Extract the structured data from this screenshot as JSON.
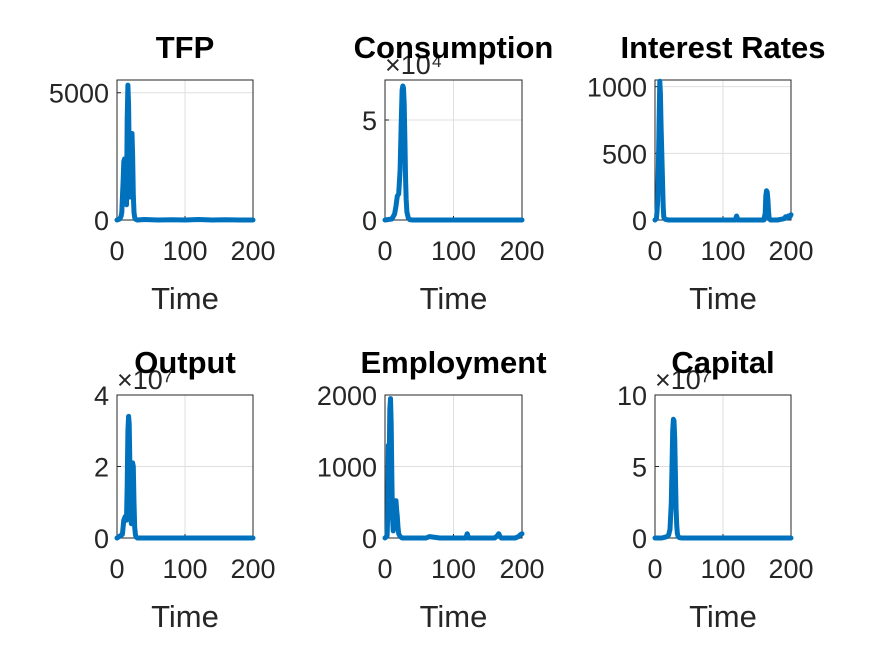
{
  "chart_data": [
    {
      "type": "line",
      "title": "TFP",
      "xlabel": "Time",
      "ylabel": "",
      "xlim": [
        0,
        200
      ],
      "ylim": [
        0,
        5500
      ],
      "xticks": [
        0,
        100,
        200
      ],
      "yticks": [
        0,
        5000
      ],
      "ytick_labels": [
        "0",
        "5000"
      ],
      "grid": true,
      "line_color": "#0072BD",
      "series": [
        {
          "x": [
            0,
            4,
            6,
            7,
            8,
            9,
            10,
            11,
            12,
            13,
            14,
            15,
            16,
            17,
            18,
            19,
            20,
            21,
            22,
            23,
            24,
            25,
            26,
            27,
            30,
            40,
            60,
            80,
            100,
            120,
            140,
            160,
            180,
            200
          ],
          "y": [
            0,
            40,
            150,
            300,
            900,
            1500,
            2300,
            2400,
            1800,
            1000,
            600,
            4000,
            5300,
            4500,
            2600,
            900,
            1600,
            3000,
            3400,
            2600,
            1000,
            300,
            100,
            30,
            0,
            20,
            0,
            10,
            0,
            20,
            0,
            10,
            0,
            0
          ]
        }
      ]
    },
    {
      "type": "line",
      "title": "Consumption",
      "xlabel": "Time",
      "ylabel": "",
      "exponent_label": "×10⁴",
      "xlim": [
        0,
        200
      ],
      "ylim": [
        0,
        7
      ],
      "xticks": [
        0,
        100,
        200
      ],
      "yticks": [
        0,
        5
      ],
      "ytick_labels": [
        "0",
        "5"
      ],
      "grid": true,
      "line_color": "#0072BD",
      "series": [
        {
          "x": [
            0,
            10,
            14,
            16,
            18,
            20,
            22,
            24,
            25,
            26,
            27,
            28,
            29,
            30,
            31,
            32,
            34,
            36,
            40,
            200
          ],
          "y": [
            0,
            0.05,
            0.3,
            0.7,
            1.2,
            1.3,
            2.5,
            5.2,
            6.5,
            6.7,
            6.6,
            5.8,
            4.0,
            2.0,
            1.0,
            0.4,
            0.1,
            0.02,
            0,
            0
          ]
        }
      ]
    },
    {
      "type": "line",
      "title": "Interest Rates",
      "xlabel": "Time",
      "ylabel": "",
      "xlim": [
        0,
        200
      ],
      "ylim": [
        0,
        1050
      ],
      "xticks": [
        0,
        100,
        200
      ],
      "yticks": [
        0,
        500,
        1000
      ],
      "ytick_labels": [
        "0",
        "500",
        "1000"
      ],
      "grid": true,
      "line_color": "#0072BD",
      "series": [
        {
          "x": [
            0,
            2,
            3,
            4,
            5,
            6,
            7,
            8,
            9,
            10,
            11,
            12,
            13,
            15,
            20,
            60,
            118,
            120,
            122,
            160,
            162,
            163,
            164,
            165,
            166,
            167,
            168,
            170,
            180,
            190,
            192,
            194,
            196,
            198,
            200
          ],
          "y": [
            0,
            10,
            60,
            150,
            400,
            750,
            1040,
            950,
            700,
            500,
            300,
            100,
            20,
            5,
            0,
            0,
            0,
            30,
            0,
            0,
            50,
            180,
            220,
            210,
            150,
            60,
            10,
            0,
            0,
            10,
            25,
            15,
            30,
            20,
            40
          ]
        }
      ]
    },
    {
      "type": "line",
      "title": "Output",
      "xlabel": "Time",
      "ylabel": "",
      "exponent_label": "×10⁷",
      "xlim": [
        0,
        200
      ],
      "ylim": [
        0,
        4
      ],
      "xticks": [
        0,
        100,
        200
      ],
      "yticks": [
        0,
        2,
        4
      ],
      "ytick_labels": [
        "0",
        "2",
        "4"
      ],
      "grid": true,
      "line_color": "#0072BD",
      "series": [
        {
          "x": [
            0,
            8,
            10,
            12,
            14,
            15,
            16,
            17,
            18,
            19,
            20,
            21,
            22,
            23,
            24,
            25,
            26,
            27,
            28,
            30,
            200
          ],
          "y": [
            0,
            0.1,
            0.5,
            0.6,
            0.5,
            1.5,
            3.0,
            3.4,
            3.2,
            2.0,
            0.8,
            0.4,
            1.2,
            2.1,
            2.0,
            1.0,
            0.3,
            0.1,
            0.03,
            0,
            0
          ]
        }
      ]
    },
    {
      "type": "line",
      "title": "Employment",
      "xlabel": "Time",
      "ylabel": "",
      "xlim": [
        0,
        200
      ],
      "ylim": [
        0,
        2000
      ],
      "xticks": [
        0,
        100,
        200
      ],
      "yticks": [
        0,
        1000,
        2000
      ],
      "ytick_labels": [
        "0",
        "1000",
        "2000"
      ],
      "grid": true,
      "line_color": "#0072BD",
      "series": [
        {
          "x": [
            0,
            3,
            4,
            5,
            6,
            7,
            8,
            9,
            10,
            11,
            12,
            13,
            14,
            15,
            16,
            17,
            18,
            19,
            20,
            22,
            25,
            60,
            65,
            80,
            100,
            118,
            120,
            122,
            160,
            164,
            166,
            168,
            170,
            190,
            195,
            197,
            200
          ],
          "y": [
            0,
            30,
            300,
            1300,
            900,
            1800,
            1950,
            1600,
            800,
            300,
            100,
            200,
            450,
            520,
            520,
            400,
            300,
            150,
            60,
            20,
            0,
            0,
            20,
            0,
            0,
            0,
            60,
            0,
            0,
            30,
            60,
            20,
            0,
            0,
            20,
            40,
            60
          ]
        }
      ]
    },
    {
      "type": "line",
      "title": "Capital",
      "xlabel": "Time",
      "ylabel": "",
      "exponent_label": "×10⁷",
      "xlim": [
        0,
        200
      ],
      "ylim": [
        0,
        10
      ],
      "xticks": [
        0,
        100,
        200
      ],
      "yticks": [
        0,
        5,
        10
      ],
      "ytick_labels": [
        "0",
        "5",
        "10"
      ],
      "grid": true,
      "line_color": "#0072BD",
      "series": [
        {
          "x": [
            0,
            10,
            14,
            18,
            20,
            22,
            24,
            25,
            26,
            27,
            28,
            29,
            30,
            31,
            32,
            33,
            34,
            36,
            40,
            200
          ],
          "y": [
            0,
            0,
            0.05,
            0.1,
            0.2,
            0.6,
            2.5,
            5.0,
            7.5,
            8.3,
            8.2,
            7.0,
            4.5,
            2.0,
            0.8,
            0.3,
            0.1,
            0.02,
            0,
            0
          ]
        }
      ]
    }
  ]
}
